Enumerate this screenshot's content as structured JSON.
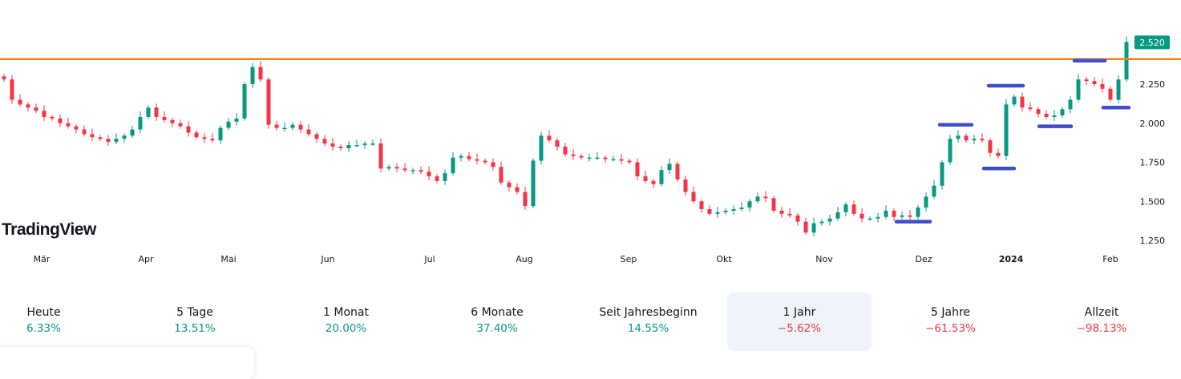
{
  "brand": "TradingView",
  "colors": {
    "up": "#089981",
    "down": "#f23645",
    "resistance": "#f7821b",
    "levels": "#3f4ecb",
    "axis_text": "#131722"
  },
  "chart_data": {
    "type": "candlestick",
    "ylim": [
      1.15,
      2.62
    ],
    "y_ticks": [
      "1.250",
      "1.500",
      "1.750",
      "2.000",
      "2.250"
    ],
    "y_tick_values": [
      1.25,
      1.5,
      1.75,
      2.0,
      2.25
    ],
    "last_price": "2.520",
    "last_price_value": 2.52,
    "x_ticks": [
      {
        "label": "Mär",
        "pos": 4.7
      },
      {
        "label": "Apr",
        "pos": 17.7
      },
      {
        "label": "Mai",
        "pos": 28
      },
      {
        "label": "Jun",
        "pos": 40.4
      },
      {
        "label": "Jul",
        "pos": 53.1
      },
      {
        "label": "Aug",
        "pos": 64.9
      },
      {
        "label": "Sep",
        "pos": 77.9
      },
      {
        "label": "Okt",
        "pos": 89.8
      },
      {
        "label": "Nov",
        "pos": 102.3
      },
      {
        "label": "Dez",
        "pos": 114.7
      },
      {
        "label": "2024",
        "pos": 125.6,
        "bold": true
      },
      {
        "label": "Feb",
        "pos": 138
      }
    ],
    "closes": [
      2.28,
      2.15,
      2.12,
      2.1,
      2.08,
      2.04,
      2.03,
      2.0,
      1.98,
      1.96,
      1.93,
      1.91,
      1.9,
      1.88,
      1.9,
      1.92,
      1.96,
      2.04,
      2.1,
      2.04,
      2.02,
      2.0,
      1.98,
      1.94,
      1.91,
      1.9,
      1.89,
      1.97,
      2.01,
      2.03,
      2.25,
      2.36,
      2.28,
      1.99,
      1.97,
      1.97,
      1.99,
      1.96,
      1.93,
      1.9,
      1.87,
      1.85,
      1.84,
      1.86,
      1.86,
      1.87,
      1.87,
      1.71,
      1.72,
      1.71,
      1.7,
      1.7,
      1.69,
      1.66,
      1.63,
      1.68,
      1.78,
      1.79,
      1.77,
      1.76,
      1.75,
      1.72,
      1.62,
      1.59,
      1.56,
      1.47,
      1.76,
      1.92,
      1.89,
      1.85,
      1.8,
      1.79,
      1.78,
      1.78,
      1.78,
      1.77,
      1.77,
      1.76,
      1.75,
      1.66,
      1.63,
      1.61,
      1.7,
      1.74,
      1.64,
      1.56,
      1.5,
      1.45,
      1.42,
      1.43,
      1.44,
      1.45,
      1.46,
      1.5,
      1.53,
      1.52,
      1.44,
      1.42,
      1.41,
      1.37,
      1.3,
      1.36,
      1.37,
      1.39,
      1.43,
      1.48,
      1.42,
      1.39,
      1.39,
      1.4,
      1.44,
      1.4,
      1.41,
      1.4,
      1.46,
      1.53,
      1.6,
      1.75,
      1.9,
      1.92,
      1.89,
      1.9,
      1.89,
      1.81,
      1.79,
      2.12,
      2.17,
      2.1,
      2.09,
      2.06,
      2.04,
      2.05,
      2.09,
      2.15,
      2.28,
      2.27,
      2.25,
      2.22,
      2.15,
      2.28,
      2.52
    ],
    "horizontal_line": 2.41,
    "level_segments": [
      {
        "price": 1.37,
        "from": 111.3,
        "to": 115.5
      },
      {
        "price": 1.99,
        "from": 116.7,
        "to": 120.7
      },
      {
        "price": 1.71,
        "from": 122.2,
        "to": 126
      },
      {
        "price": 2.24,
        "from": 122.8,
        "to": 127.1
      },
      {
        "price": 1.98,
        "from": 129.1,
        "to": 133.1
      },
      {
        "price": 2.4,
        "from": 133.5,
        "to": 137.3
      },
      {
        "price": 2.1,
        "from": 137.1,
        "to": 140.3
      }
    ]
  },
  "performance": [
    {
      "label": "Heute",
      "value": "6.33%",
      "dir": "up"
    },
    {
      "label": "5 Tage",
      "value": "13.51%",
      "dir": "up"
    },
    {
      "label": "1 Monat",
      "value": "20.00%",
      "dir": "up"
    },
    {
      "label": "6 Monate",
      "value": "37.40%",
      "dir": "up"
    },
    {
      "label": "Seit Jahresbeginn",
      "value": "14.55%",
      "dir": "up"
    },
    {
      "label": "1 Jahr",
      "value": "−5.62%",
      "dir": "down",
      "selected": true
    },
    {
      "label": "5 Jahre",
      "value": "−61.53%",
      "dir": "down"
    },
    {
      "label": "Allzeit",
      "value": "−98.13%",
      "dir": "down"
    }
  ]
}
